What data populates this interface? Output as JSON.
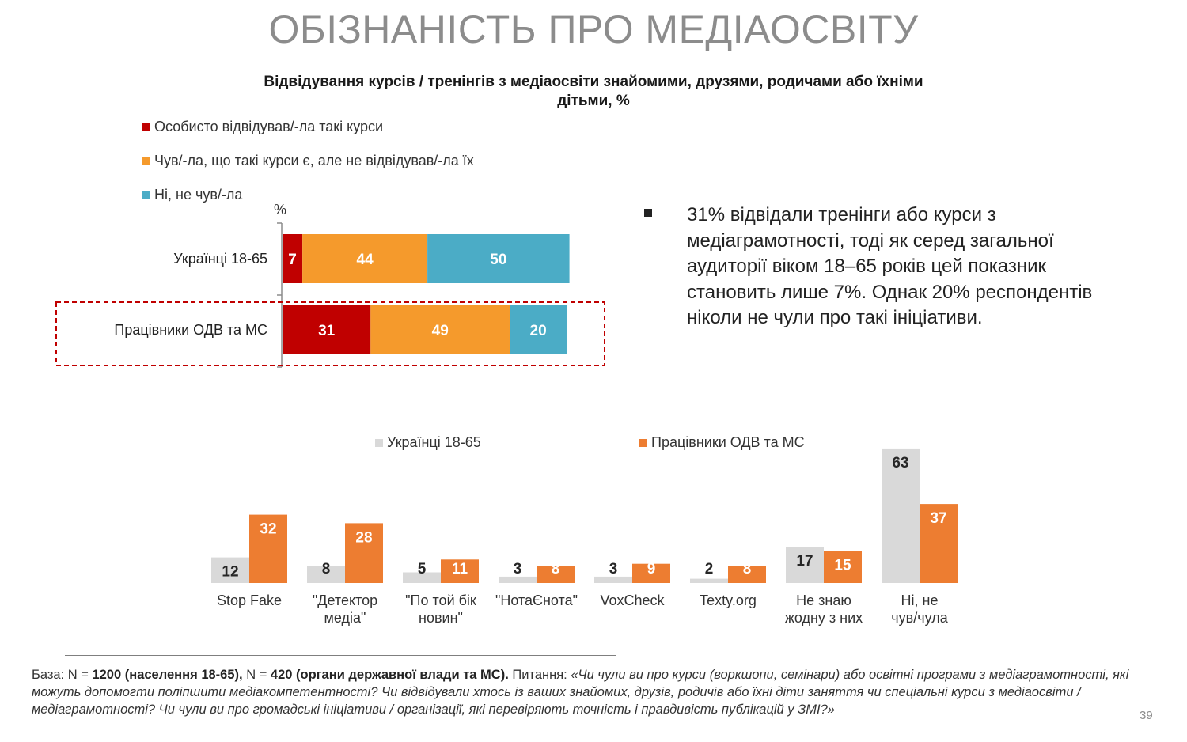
{
  "page": {
    "title": "ОБІЗНАНІСТЬ ПРО МЕДІАОСВІТУ",
    "page_number": "39"
  },
  "colors": {
    "dark_red": "#C00000",
    "orange": "#F59A2C",
    "teal": "#4BACC6",
    "light_gray": "#D9D9D9",
    "burnt_orange": "#ED7D31"
  },
  "bullet": {
    "text": "31% відвідали тренінги або курси з медіаграмотності, тоді як серед загальної аудиторії віком 18–65 років цей показник становить лише 7%. Однак 20% респондентів ніколи не чули про такі ініціативи."
  },
  "footnote": {
    "base_prefix": "База: N = ",
    "base_n1": "1200 (населення 18-65),",
    "base_mid": " N = ",
    "base_n2": "420 (органи державної влади та МС).",
    "question_prefix": " Питання: ",
    "question_text": "«Чи чули ви про курси (воркшопи, семінари) або освітні програми з медіаграмотності, які можуть допомогти поліпшити медіакомпетентності? Чи відвідували хтось із ваших знайомих, друзів, родичів або їхні діти заняття чи спеціальні курси з медіаосвіти / медіаграмотності? Чи чули ви про громадські ініціативи / організації, які перевіряють точність і правдивість публікацій у ЗМІ?»"
  },
  "chart_data": [
    {
      "type": "bar",
      "orientation": "horizontal-stacked",
      "title": "Відвідування курсів / тренінгів з медіаосвіти знайомими, друзями, родичами або їхніми дітьми, %",
      "unit_label": "%",
      "legend_placement": "top-left",
      "categories": [
        "Українці 18-65",
        "Працівники ОДВ та МС"
      ],
      "series": [
        {
          "name": "Особисто відвідував/-ла такі курси",
          "values": [
            7,
            31
          ],
          "color": "#C00000"
        },
        {
          "name": "Чув/-ла, що такі курси є, але не відвідував/-ла їх",
          "values": [
            44,
            49
          ],
          "color": "#F59A2C"
        },
        {
          "name": "Ні, не чув/-ла",
          "values": [
            50,
            20
          ],
          "color": "#4BACC6"
        }
      ],
      "highlighted_category": "Працівники ОДВ та МС"
    },
    {
      "type": "bar",
      "orientation": "vertical-grouped",
      "legend_placement": "top",
      "categories": [
        "Stop Fake",
        "\"Детектор медіа\"",
        "\"По той бік новин\"",
        "\"НотаЄнота\"",
        "VoxCheck",
        "Texty.org",
        "Не знаю жодну з них",
        "Ні, не чув/чула"
      ],
      "category_lines": [
        [
          "Stop Fake"
        ],
        [
          "\"Детектор",
          "медіа\""
        ],
        [
          "\"По той бік",
          "новин\""
        ],
        [
          "\"НотаЄнота\""
        ],
        [
          "VoxCheck"
        ],
        [
          "Texty.org"
        ],
        [
          "Не знаю",
          "жодну з них"
        ],
        [
          "Ні, не",
          "чув/чула"
        ]
      ],
      "series": [
        {
          "name": "Українці 18-65",
          "values": [
            12,
            8,
            5,
            3,
            3,
            2,
            17,
            63
          ],
          "color": "#D9D9D9"
        },
        {
          "name": "Працівники ОДВ та МС",
          "values": [
            32,
            28,
            11,
            8,
            9,
            8,
            15,
            37
          ],
          "color": "#ED7D31"
        }
      ],
      "ylim": [
        0,
        63
      ]
    }
  ]
}
